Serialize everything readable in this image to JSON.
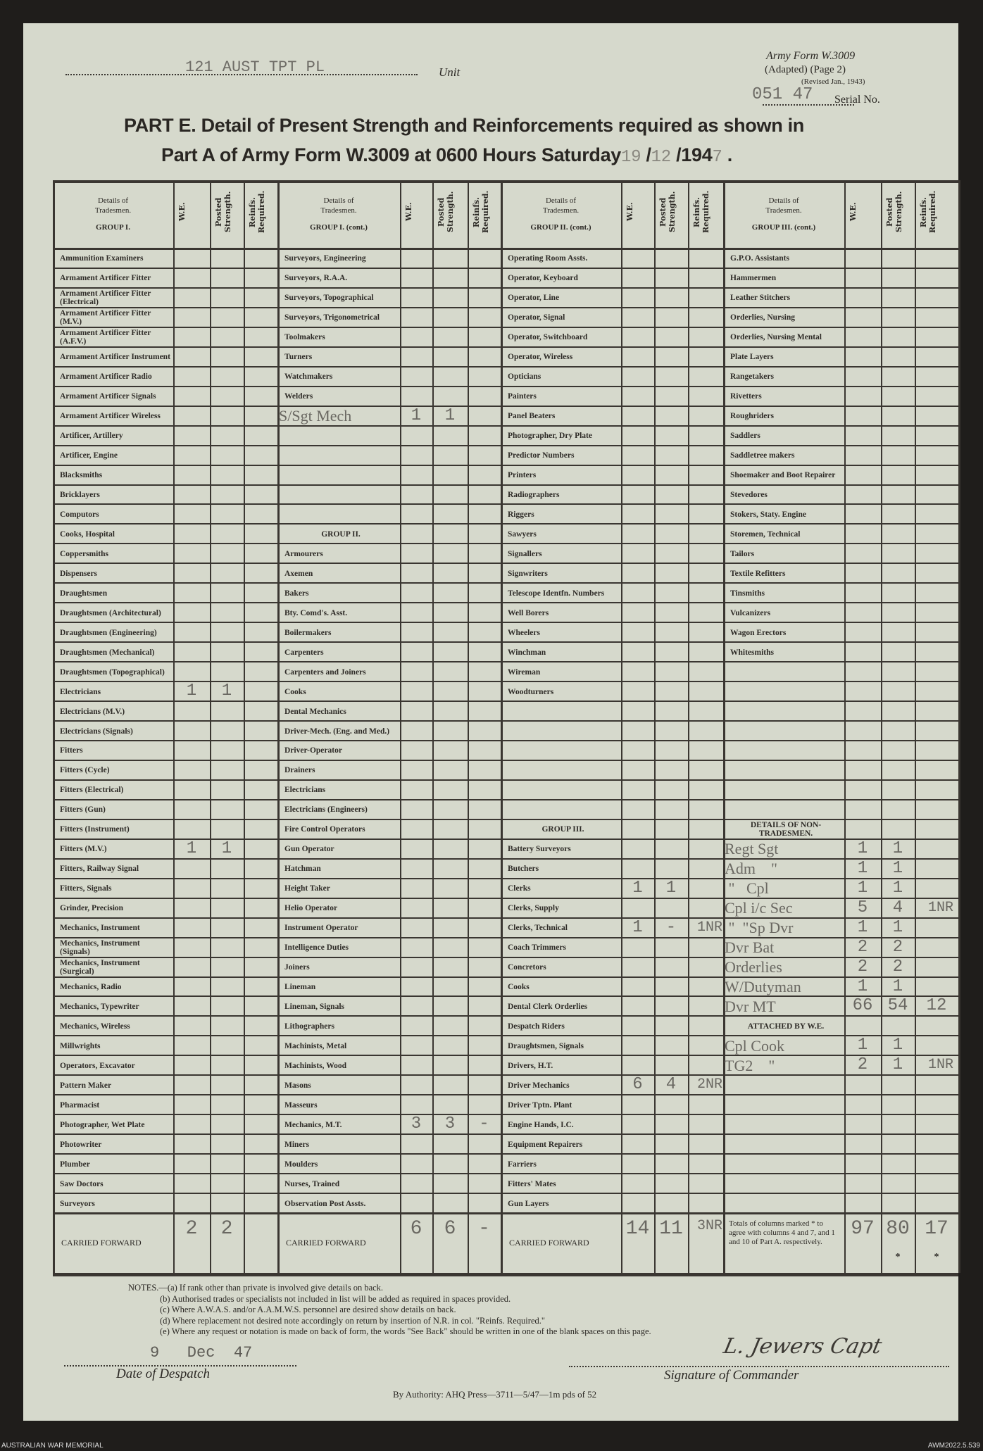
{
  "header": {
    "unit_value": "121 AUST TPT PL",
    "unit_label": "Unit",
    "form_name": "Army Form W.3009",
    "form_adapted": "(Adapted) (Page 2)",
    "form_revised": "(Revised Jan., 1943)",
    "serial_value": "051 47",
    "serial_label": "Serial No.",
    "title_line1": "PART E.  Detail of Present Strength and Reinforcements required as shown in",
    "title_line2": "Part A of Army Form W.3009 at 0600 Hours Saturday",
    "date_day": "19",
    "date_month": "12",
    "date_year_prefix": "194",
    "date_year_digit": "7"
  },
  "column_headers": {
    "details": "Details of Tradesmen.",
    "groups": [
      "GROUP I.",
      "GROUP I. (cont.)",
      "GROUP II. (cont.)",
      "GROUP III. (cont.)"
    ],
    "we": "W.E.",
    "posted": "Posted Strength.",
    "reinf": "Reinfs. Required."
  },
  "columns": [
    [
      {
        "label": "Ammunition Examiners"
      },
      {
        "label": "Armament Artificer Fitter"
      },
      {
        "label": "Armament Artificer Fitter (Electrical)"
      },
      {
        "label": "Armament Artificer Fitter (M.V.)"
      },
      {
        "label": "Armament Artificer Fitter (A.F.V.)"
      },
      {
        "label": "Armament Artificer Instrument"
      },
      {
        "label": "Armament Artificer Radio"
      },
      {
        "label": "Armament Artificer Signals"
      },
      {
        "label": "Armament Artificer Wireless"
      },
      {
        "label": "Artificer, Artillery"
      },
      {
        "label": "Artificer, Engine"
      },
      {
        "label": "Blacksmiths"
      },
      {
        "label": "Bricklayers"
      },
      {
        "label": "Computors"
      },
      {
        "label": "Cooks, Hospital"
      },
      {
        "label": "Coppersmiths"
      },
      {
        "label": "Dispensers"
      },
      {
        "label": "Draughtsmen"
      },
      {
        "label": "Draughtsmen (Architectural)"
      },
      {
        "label": "Draughtsmen (Engineering)"
      },
      {
        "label": "Draughtsmen (Mechanical)"
      },
      {
        "label": "Draughtsmen (Topographical)"
      },
      {
        "label": "Electricians",
        "we": "1",
        "posted": "1"
      },
      {
        "label": "Electricians (M.V.)"
      },
      {
        "label": "Electricians (Signals)"
      },
      {
        "label": "Fitters"
      },
      {
        "label": "Fitters (Cycle)"
      },
      {
        "label": "Fitters (Electrical)"
      },
      {
        "label": "Fitters (Gun)"
      },
      {
        "label": "Fitters (Instrument)"
      },
      {
        "label": "Fitters (M.V.)",
        "we": "1",
        "posted": "1"
      },
      {
        "label": "Fitters, Railway Signal"
      },
      {
        "label": "Fitters, Signals"
      },
      {
        "label": "Grinder, Precision"
      },
      {
        "label": "Mechanics, Instrument"
      },
      {
        "label": "Mechanics, Instrument (Signals)"
      },
      {
        "label": "Mechanics, Instrument (Surgical)"
      },
      {
        "label": "Mechanics, Radio"
      },
      {
        "label": "Mechanics, Typewriter"
      },
      {
        "label": "Mechanics, Wireless"
      },
      {
        "label": "Millwrights"
      },
      {
        "label": "Operators, Excavator"
      },
      {
        "label": "Pattern Maker"
      },
      {
        "label": "Pharmacist"
      },
      {
        "label": "Photographer, Wet Plate"
      },
      {
        "label": "Photowriter"
      },
      {
        "label": "Plumber"
      },
      {
        "label": "Saw Doctors"
      },
      {
        "label": "Surveyors"
      }
    ],
    [
      {
        "label": "Surveyors, Engineering"
      },
      {
        "label": "Surveyors, R.A.A."
      },
      {
        "label": "Surveyors, Topographical"
      },
      {
        "label": "Surveyors, Trigonometrical"
      },
      {
        "label": "Toolmakers"
      },
      {
        "label": "Turners"
      },
      {
        "label": "Watchmakers"
      },
      {
        "label": "Welders"
      },
      {
        "label": "S/Sgt Mech",
        "we": "1",
        "posted": "1",
        "typed": true
      },
      {
        "label": ""
      },
      {
        "label": ""
      },
      {
        "label": ""
      },
      {
        "label": ""
      },
      {
        "label": ""
      },
      {
        "label": "GROUP II.",
        "heading": true
      },
      {
        "label": "Armourers"
      },
      {
        "label": "Axemen"
      },
      {
        "label": "Bakers"
      },
      {
        "label": "Bty. Comd's. Asst."
      },
      {
        "label": "Boilermakers"
      },
      {
        "label": "Carpenters"
      },
      {
        "label": "Carpenters and Joiners"
      },
      {
        "label": "Cooks"
      },
      {
        "label": "Dental Mechanics"
      },
      {
        "label": "Driver-Mech. (Eng. and Med.)"
      },
      {
        "label": "Driver-Operator"
      },
      {
        "label": "Drainers"
      },
      {
        "label": "Electricians"
      },
      {
        "label": "Electricians (Engineers)"
      },
      {
        "label": "Fire Control Operators"
      },
      {
        "label": "Gun Operator"
      },
      {
        "label": "Hatchman"
      },
      {
        "label": "Height Taker"
      },
      {
        "label": "Helio Operator"
      },
      {
        "label": "Instrument Operator"
      },
      {
        "label": "Intelligence Duties"
      },
      {
        "label": "Joiners"
      },
      {
        "label": "Lineman"
      },
      {
        "label": "Lineman, Signals"
      },
      {
        "label": "Lithographers"
      },
      {
        "label": "Machinists, Metal"
      },
      {
        "label": "Machinists, Wood"
      },
      {
        "label": "Masons"
      },
      {
        "label": "Masseurs"
      },
      {
        "label": "Mechanics, M.T.",
        "we": "3",
        "posted": "3",
        "reinf": "-"
      },
      {
        "label": "Miners"
      },
      {
        "label": "Moulders"
      },
      {
        "label": "Nurses, Trained"
      },
      {
        "label": "Observation Post Assts."
      }
    ],
    [
      {
        "label": "Operating Room Assts."
      },
      {
        "label": "Operator, Keyboard"
      },
      {
        "label": "Operator, Line"
      },
      {
        "label": "Operator, Signal"
      },
      {
        "label": "Operator, Switchboard"
      },
      {
        "label": "Operator, Wireless"
      },
      {
        "label": "Opticians"
      },
      {
        "label": "Painters"
      },
      {
        "label": "Panel Beaters"
      },
      {
        "label": "Photographer, Dry Plate"
      },
      {
        "label": "Predictor Numbers"
      },
      {
        "label": "Printers"
      },
      {
        "label": "Radiographers"
      },
      {
        "label": "Riggers"
      },
      {
        "label": "Sawyers"
      },
      {
        "label": "Signallers"
      },
      {
        "label": "Signwriters"
      },
      {
        "label": "Telescope Identfn. Numbers"
      },
      {
        "label": "Well Borers"
      },
      {
        "label": "Wheelers"
      },
      {
        "label": "Winchman"
      },
      {
        "label": "Wireman"
      },
      {
        "label": "Woodturners"
      },
      {
        "label": ""
      },
      {
        "label": ""
      },
      {
        "label": ""
      },
      {
        "label": ""
      },
      {
        "label": ""
      },
      {
        "label": ""
      },
      {
        "label": "GROUP III.",
        "heading": true
      },
      {
        "label": "Battery Surveyors"
      },
      {
        "label": "Butchers"
      },
      {
        "label": "Clerks",
        "we": "1",
        "posted": "1"
      },
      {
        "label": "Clerks, Supply"
      },
      {
        "label": "Clerks, Technical",
        "we": "1",
        "posted": "-",
        "reinf": "1NR"
      },
      {
        "label": "Coach Trimmers"
      },
      {
        "label": "Concretors"
      },
      {
        "label": "Cooks"
      },
      {
        "label": "Dental Clerk Orderlies"
      },
      {
        "label": "Despatch Riders"
      },
      {
        "label": "Draughtsmen, Signals"
      },
      {
        "label": "Drivers, H.T."
      },
      {
        "label": "Driver Mechanics",
        "we": "6",
        "posted": "4",
        "reinf": "2NR"
      },
      {
        "label": "Driver Tptn. Plant"
      },
      {
        "label": "Engine Hands, I.C."
      },
      {
        "label": "Equipment Repairers"
      },
      {
        "label": "Farriers"
      },
      {
        "label": "Fitters' Mates"
      },
      {
        "label": "Gun Layers"
      }
    ],
    [
      {
        "label": "G.P.O. Assistants"
      },
      {
        "label": "Hammermen"
      },
      {
        "label": "Leather Stitchers"
      },
      {
        "label": "Orderlies, Nursing"
      },
      {
        "label": "Orderlies, Nursing Mental"
      },
      {
        "label": "Plate Layers"
      },
      {
        "label": "Rangetakers"
      },
      {
        "label": "Rivetters"
      },
      {
        "label": "Roughriders"
      },
      {
        "label": "Saddlers"
      },
      {
        "label": "Saddletree makers"
      },
      {
        "label": "Shoemaker and Boot Repairer"
      },
      {
        "label": "Stevedores"
      },
      {
        "label": "Stokers, Staty. Engine"
      },
      {
        "label": "Storemen, Technical"
      },
      {
        "label": "Tailors"
      },
      {
        "label": "Textile Refitters"
      },
      {
        "label": "Tinsmiths"
      },
      {
        "label": "Vulcanizers"
      },
      {
        "label": "Wagon Erectors"
      },
      {
        "label": "Whitesmiths"
      },
      {
        "label": ""
      },
      {
        "label": ""
      },
      {
        "label": ""
      },
      {
        "label": ""
      },
      {
        "label": ""
      },
      {
        "label": ""
      },
      {
        "label": ""
      },
      {
        "label": ""
      },
      {
        "label": "DETAILS OF NON-TRADESMEN.",
        "heading": true
      },
      {
        "label": "Regt Sgt",
        "we": "1",
        "posted": "1",
        "typed": true
      },
      {
        "label": "Adm    \"",
        "we": "1",
        "posted": "1",
        "typed": true
      },
      {
        "label": " \"   Cpl",
        "we": "1",
        "posted": "1",
        "typed": true
      },
      {
        "label": "Cpl i/c Sec",
        "we": "5",
        "posted": "4",
        "reinf": "1NR",
        "typed": true
      },
      {
        "label": " \"  \"Sp Dvr",
        "we": "1",
        "posted": "1",
        "typed": true
      },
      {
        "label": "Dvr Bat",
        "we": "2",
        "posted": "2",
        "typed": true
      },
      {
        "label": "Orderlies",
        "we": "2",
        "posted": "2",
        "typed": true
      },
      {
        "label": "W/Dutyman",
        "we": "1",
        "posted": "1",
        "typed": true
      },
      {
        "label": "Dvr MT",
        "we": "66",
        "posted": "54",
        "reinf": "12",
        "typed": true
      },
      {
        "label": "ATTACHED BY W.E.",
        "heading": true
      },
      {
        "label": "Cpl Cook",
        "we": "1",
        "posted": "1",
        "typed": true
      },
      {
        "label": "TG2    \"",
        "we": "2",
        "posted": "1",
        "reinf": "1NR",
        "typed": true
      },
      {
        "label": ""
      },
      {
        "label": ""
      },
      {
        "label": ""
      },
      {
        "label": ""
      },
      {
        "label": ""
      },
      {
        "label": ""
      },
      {
        "label": ""
      }
    ]
  ],
  "carried_forward": [
    {
      "label": "CARRIED FORWARD",
      "we": "2",
      "posted": "2",
      "reinf": ""
    },
    {
      "label": "CARRIED FORWARD",
      "we": "6",
      "posted": "6",
      "reinf": "-"
    },
    {
      "label": "CARRIED FORWARD",
      "we": "14",
      "posted": "11",
      "reinf": "3NR"
    },
    {
      "label": "Totals of columns marked * to agree with columns 4 and 7, and 1 and 10 of Part A. respectively.",
      "we": "97",
      "posted": "80",
      "reinf": "17",
      "marks": "*"
    }
  ],
  "notes": [
    "NOTES.—(a) If rank other than private is involved give details on back.",
    "(b) Authorised trades or specialists not included in list will be added as required in spaces provided.",
    "(c) Where A.W.A.S. and/or A.A.M.W.S. personnel are desired show details on back.",
    "(d) Where replacement not desired note accordingly on return by insertion of N.R. in col. \"Reinfs. Required.\"",
    "(e) Where any request or notation is made on back of form, the words \"See Back\" should be written in one of the blank spaces on this page."
  ],
  "footer": {
    "despatch_value": "9   Dec  47",
    "despatch_label": "Date of Despatch",
    "signature_value": "L. Jewers Capt",
    "signature_label": "Signature of Commander",
    "authority": "By Authority: AHQ Press—3711—5/47—1m pds of 52",
    "archive_left": "AUSTRALIAN WAR MEMORIAL",
    "archive_right": "AWM2022.5.539"
  },
  "colors": {
    "paper": "#d6d9cc",
    "ink": "#2e2b27",
    "typewriter": "#6a6862",
    "background": "#1f1d1b"
  }
}
